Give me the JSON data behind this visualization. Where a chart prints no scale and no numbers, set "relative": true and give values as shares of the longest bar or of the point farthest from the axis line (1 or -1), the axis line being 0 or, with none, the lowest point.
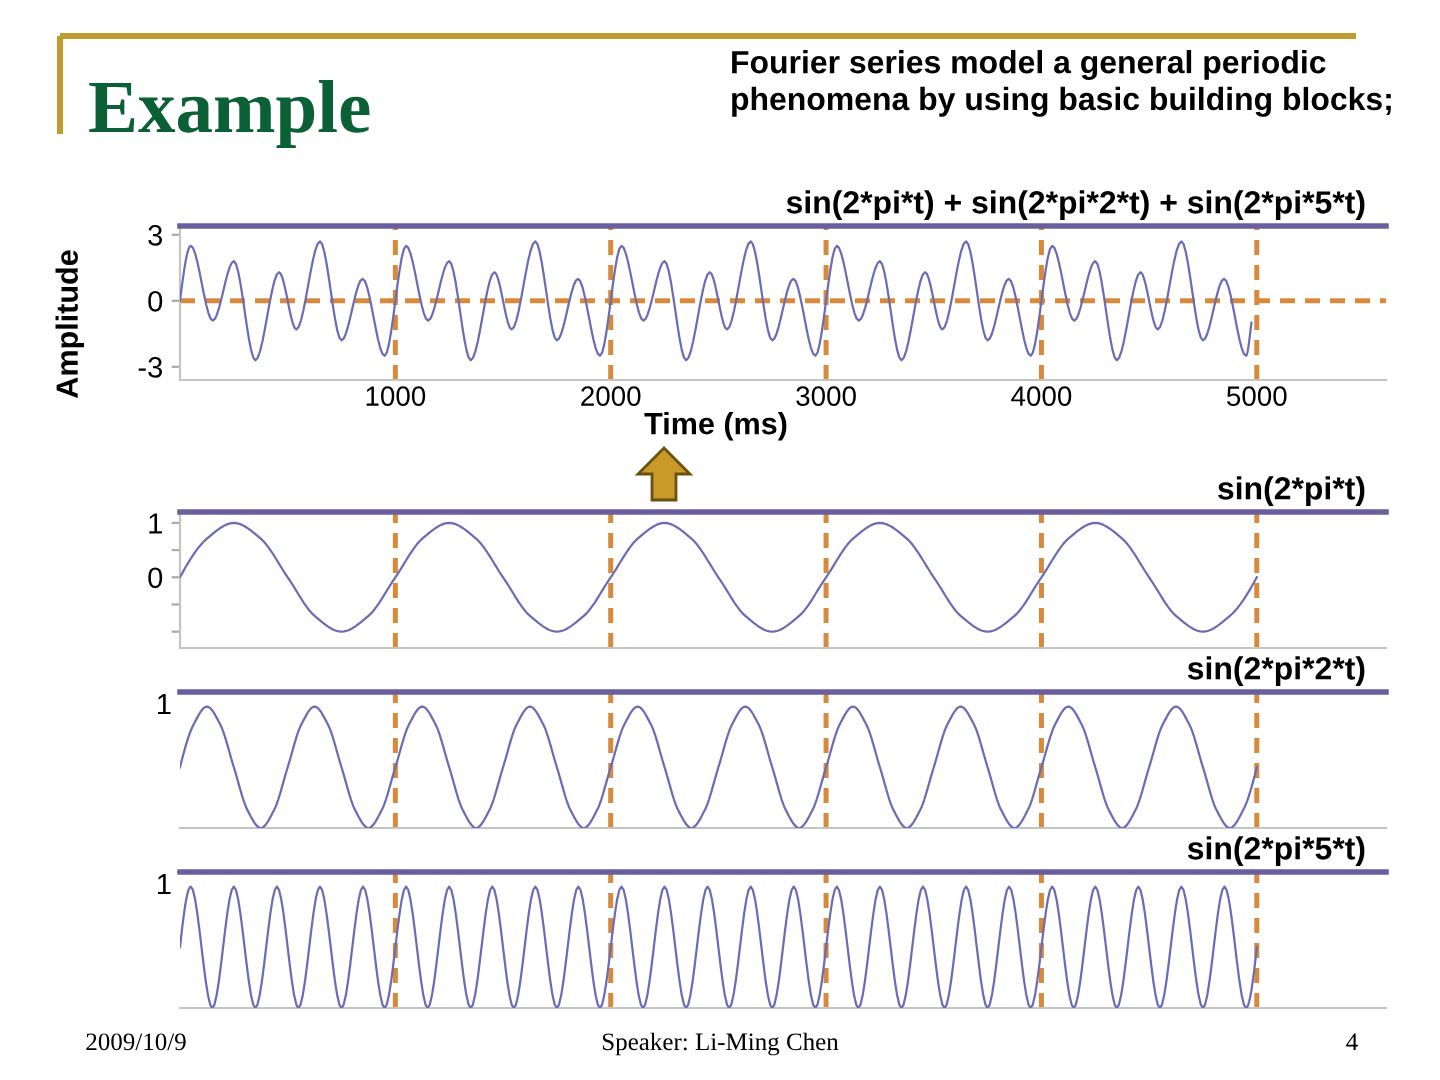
{
  "chart_data": [
    {
      "type": "line",
      "title": "Example",
      "subtitle": "Fourier series model a general periodic phenomena by using basic building blocks;",
      "xlabel": "Time (ms)",
      "ylabel": "Amplitude",
      "xlim": [
        0,
        5600
      ],
      "xticks": [
        1000,
        2000,
        3000,
        4000,
        5000
      ],
      "ylim": [
        -3.6,
        3.4
      ],
      "yticks": [
        -3,
        0,
        3
      ],
      "annotations": [
        "2009/10/9",
        "Speaker: Li-Ming Chen",
        "4"
      ],
      "ref_lines": [
        {
          "axis": "x",
          "value": 1000,
          "color": "#d88a3c",
          "line_style": "dashed"
        },
        {
          "axis": "x",
          "value": 2000,
          "color": "#d88a3c",
          "line_style": "dashed"
        },
        {
          "axis": "x",
          "value": 3000,
          "color": "#d88a3c",
          "line_style": "dashed"
        },
        {
          "axis": "x",
          "value": 4000,
          "color": "#d88a3c",
          "line_style": "dashed"
        },
        {
          "axis": "x",
          "value": 5000,
          "color": "#d88a3c",
          "line_style": "dashed"
        },
        {
          "axis": "y",
          "value": 0,
          "color": "#d88a3c",
          "line_style": "dashed"
        }
      ],
      "series": [
        {
          "name": "sin(2*pi*t) + sin(2*pi*2*t) + sin(2*pi*5*t)",
          "color": "#6c6cb4",
          "x": [
            0,
            50,
            152,
            250,
            350,
            460,
            540,
            650,
            750,
            848,
            950,
            1050,
            1152,
            1250,
            1350,
            1460,
            1540,
            1650,
            1750,
            1848,
            1950,
            2050,
            2152,
            2250,
            2350,
            2460,
            2540,
            2650,
            2750,
            2848,
            2950,
            3050,
            3152,
            3250,
            3350,
            3460,
            3540,
            3650,
            3750,
            3848,
            3950,
            4050,
            4152,
            4250,
            4350,
            4460,
            4540,
            4650,
            4750,
            4848,
            4950,
            4975
          ],
          "values": [
            0,
            2.5,
            -0.9,
            1.8,
            -2.7,
            1.3,
            -1.3,
            2.7,
            -1.8,
            1.0,
            -2.5,
            2.5,
            -0.9,
            1.8,
            -2.7,
            1.3,
            -1.3,
            2.7,
            -1.8,
            1.0,
            -2.5,
            2.5,
            -0.9,
            1.8,
            -2.7,
            1.3,
            -1.3,
            2.7,
            -1.8,
            1.0,
            -2.5,
            2.5,
            -0.9,
            1.8,
            -2.7,
            1.3,
            -1.3,
            2.7,
            -1.8,
            1.0,
            -2.5,
            2.5,
            -0.9,
            1.8,
            -2.7,
            1.3,
            -1.3,
            2.7,
            -1.8,
            1.0,
            -2.5,
            -1.0
          ]
        }
      ]
    },
    {
      "type": "line",
      "xlim": [
        0,
        5600
      ],
      "tick_labels": "y",
      "ylim": [
        -1.3,
        1.2
      ],
      "yticks": [
        {
          "value": -1,
          "label": null
        },
        {
          "value": -0.5,
          "label": null
        },
        0,
        {
          "value": 0.5,
          "label": null
        },
        1
      ],
      "ref_lines": [
        {
          "axis": "x",
          "value": 1000,
          "color": "#d88a3c",
          "line_style": "dashed"
        },
        {
          "axis": "x",
          "value": 2000,
          "color": "#d88a3c",
          "line_style": "dashed"
        },
        {
          "axis": "x",
          "value": 3000,
          "color": "#d88a3c",
          "line_style": "dashed"
        },
        {
          "axis": "x",
          "value": 4000,
          "color": "#d88a3c",
          "line_style": "dashed"
        },
        {
          "axis": "x",
          "value": 5000,
          "color": "#d88a3c",
          "line_style": "dashed"
        }
      ],
      "series": [
        {
          "name": "sin(2*pi*t)",
          "color": "#6c6cb4",
          "x": [
            0,
            125,
            250,
            375,
            500,
            625,
            750,
            875,
            1000,
            1125,
            1250,
            1375,
            1500,
            1625,
            1750,
            1875,
            2000,
            2125,
            2250,
            2375,
            2500,
            2625,
            2750,
            2875,
            3000,
            3125,
            3250,
            3375,
            3500,
            3625,
            3750,
            3875,
            4000,
            4125,
            4250,
            4375,
            4500,
            4625,
            4750,
            4875,
            5000
          ],
          "values": [
            0,
            0.71,
            1,
            0.71,
            0,
            -0.71,
            -1,
            -0.71,
            0,
            0.71,
            1,
            0.71,
            0,
            -0.71,
            -1,
            -0.71,
            0,
            0.71,
            1,
            0.71,
            0,
            -0.71,
            -1,
            -0.71,
            0,
            0.71,
            1,
            0.71,
            0,
            -0.71,
            -1,
            -0.71,
            0,
            0.71,
            1,
            0.71,
            0,
            -0.71,
            -1,
            -0.71,
            0
          ]
        }
      ]
    },
    {
      "type": "line",
      "xlim": [
        0,
        5600
      ],
      "tick_labels": false,
      "relative": true,
      "annotations": [
        "1"
      ],
      "ref_lines": [
        {
          "axis": "x",
          "value": 1000,
          "color": "#d88a3c",
          "line_style": "dashed"
        },
        {
          "axis": "x",
          "value": 2000,
          "color": "#d88a3c",
          "line_style": "dashed"
        },
        {
          "axis": "x",
          "value": 3000,
          "color": "#d88a3c",
          "line_style": "dashed"
        },
        {
          "axis": "x",
          "value": 4000,
          "color": "#d88a3c",
          "line_style": "dashed"
        },
        {
          "axis": "x",
          "value": 5000,
          "color": "#d88a3c",
          "line_style": "dashed"
        }
      ],
      "series": [
        {
          "name": "sin(2*pi*2*t)",
          "color": "#6c6cb4",
          "x": [
            0,
            62.5,
            125,
            187.5,
            250,
            312.5,
            375,
            437.5,
            500,
            562.5,
            625,
            687.5,
            750,
            812.5,
            875,
            937.5,
            1000,
            1062.5,
            1125,
            1187.5,
            1250,
            1312.5,
            1375,
            1437.5,
            1500,
            1562.5,
            1625,
            1687.5,
            1750,
            1812.5,
            1875,
            1937.5,
            2000,
            2062.5,
            2125,
            2187.5,
            2250,
            2312.5,
            2375,
            2437.5,
            2500,
            2562.5,
            2625,
            2687.5,
            2750,
            2812.5,
            2875,
            2937.5,
            3000,
            3062.5,
            3125,
            3187.5,
            3250,
            3312.5,
            3375,
            3437.5,
            3500,
            3562.5,
            3625,
            3687.5,
            3750,
            3812.5,
            3875,
            3937.5,
            4000,
            4062.5,
            4125,
            4187.5,
            4250,
            4312.5,
            4375,
            4437.5,
            4500,
            4562.5,
            4625,
            4687.5,
            4750,
            4812.5,
            4875,
            4937.5,
            5000
          ],
          "values": [
            0.5,
            0.85,
            1,
            0.85,
            0.5,
            0.15,
            0,
            0.15,
            0.5,
            0.85,
            1,
            0.85,
            0.5,
            0.15,
            0,
            0.15,
            0.5,
            0.85,
            1,
            0.85,
            0.5,
            0.15,
            0,
            0.15,
            0.5,
            0.85,
            1,
            0.85,
            0.5,
            0.15,
            0,
            0.15,
            0.5,
            0.85,
            1,
            0.85,
            0.5,
            0.15,
            0,
            0.15,
            0.5,
            0.85,
            1,
            0.85,
            0.5,
            0.15,
            0,
            0.15,
            0.5,
            0.85,
            1,
            0.85,
            0.5,
            0.15,
            0,
            0.15,
            0.5,
            0.85,
            1,
            0.85,
            0.5,
            0.15,
            0,
            0.15,
            0.5,
            0.85,
            1,
            0.85,
            0.5,
            0.15,
            0,
            0.15,
            0.5,
            0.85,
            1,
            0.85,
            0.5,
            0.15,
            0,
            0.15,
            0.5
          ]
        }
      ]
    },
    {
      "type": "line",
      "xlim": [
        0,
        5600
      ],
      "tick_labels": false,
      "relative": true,
      "annotations": [
        "1"
      ],
      "ref_lines": [
        {
          "axis": "x",
          "value": 1000,
          "color": "#d88a3c",
          "line_style": "dashed"
        },
        {
          "axis": "x",
          "value": 2000,
          "color": "#d88a3c",
          "line_style": "dashed"
        },
        {
          "axis": "x",
          "value": 3000,
          "color": "#d88a3c",
          "line_style": "dashed"
        },
        {
          "axis": "x",
          "value": 4000,
          "color": "#d88a3c",
          "line_style": "dashed"
        },
        {
          "axis": "x",
          "value": 5000,
          "color": "#d88a3c",
          "line_style": "dashed"
        }
      ],
      "series": [
        {
          "name": "sin(2*pi*5*t)",
          "color": "#6c6cb4",
          "x": [
            0,
            50,
            150,
            250,
            350,
            450,
            550,
            650,
            750,
            850,
            950,
            1050,
            1150,
            1250,
            1350,
            1450,
            1550,
            1650,
            1750,
            1850,
            1950,
            2050,
            2150,
            2250,
            2350,
            2450,
            2550,
            2650,
            2750,
            2850,
            2950,
            3050,
            3150,
            3250,
            3350,
            3450,
            3550,
            3650,
            3750,
            3850,
            3950,
            4050,
            4150,
            4250,
            4350,
            4450,
            4550,
            4650,
            4750,
            4850,
            4950,
            5000
          ],
          "values": [
            0.5,
            1,
            0,
            1,
            0,
            1,
            0,
            1,
            0,
            1,
            0,
            1,
            0,
            1,
            0,
            1,
            0,
            1,
            0,
            1,
            0,
            1,
            0,
            1,
            0,
            1,
            0,
            1,
            0,
            1,
            0,
            1,
            0,
            1,
            0,
            1,
            0,
            1,
            0,
            1,
            0,
            1,
            0,
            1,
            0,
            1,
            0,
            1,
            0,
            1,
            0,
            0.5
          ]
        }
      ]
    }
  ]
}
